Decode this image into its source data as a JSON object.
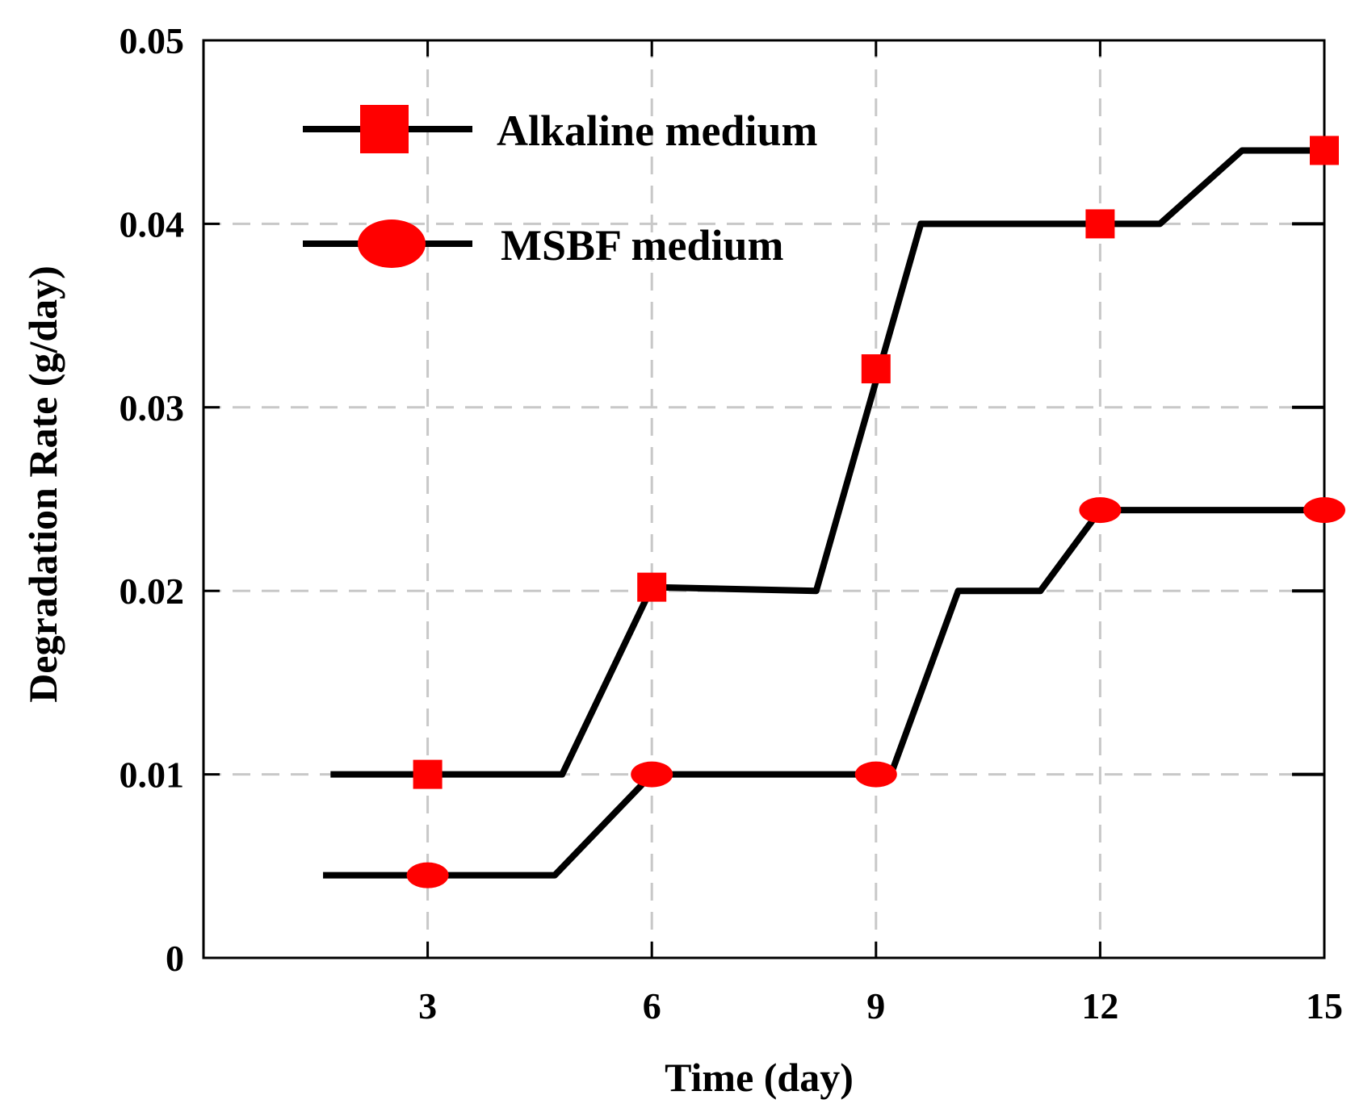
{
  "chart_data": {
    "type": "line",
    "title": "",
    "xlabel": "Time (day)",
    "ylabel": "Degradation Rate (g/day)",
    "xlim": [
      0,
      15
    ],
    "ylim": [
      0,
      0.05
    ],
    "xticks": [
      3,
      6,
      9,
      12,
      15
    ],
    "xtick_labels": [
      "3",
      "6",
      "9",
      "12",
      "15"
    ],
    "yticks": [
      0,
      0.01,
      0.02,
      0.03,
      0.04,
      0.05
    ],
    "ytick_labels": [
      "0",
      "0.01",
      "0.02",
      "0.03",
      "0.04",
      "0.05"
    ],
    "grid": true,
    "legend_position": "top-left",
    "series": [
      {
        "name": "Alkaline medium",
        "marker": "square",
        "color": "#ff0000",
        "line_color": "#000000",
        "points_x": [
          3,
          6,
          9,
          12,
          15
        ],
        "points_y": [
          0.01,
          0.0202,
          0.0321,
          0.04,
          0.044
        ],
        "curve_x": [
          1.7,
          4.8,
          6.0,
          8.2,
          9.6,
          12.8,
          13.9,
          15.0
        ],
        "curve_y": [
          0.01,
          0.01,
          0.0202,
          0.02,
          0.04,
          0.04,
          0.044,
          0.044
        ]
      },
      {
        "name": "MSBF medium",
        "marker": "ellipse",
        "color": "#ff0000",
        "line_color": "#000000",
        "points_x": [
          3,
          6,
          9,
          12,
          15
        ],
        "points_y": [
          0.0045,
          0.01,
          0.01,
          0.0244,
          0.0244
        ],
        "curve_x": [
          1.6,
          4.7,
          6.0,
          9.2,
          10.1,
          11.2,
          12.0,
          15.0
        ],
        "curve_y": [
          0.0045,
          0.0045,
          0.01,
          0.01,
          0.02,
          0.02,
          0.0244,
          0.0244
        ]
      }
    ]
  }
}
